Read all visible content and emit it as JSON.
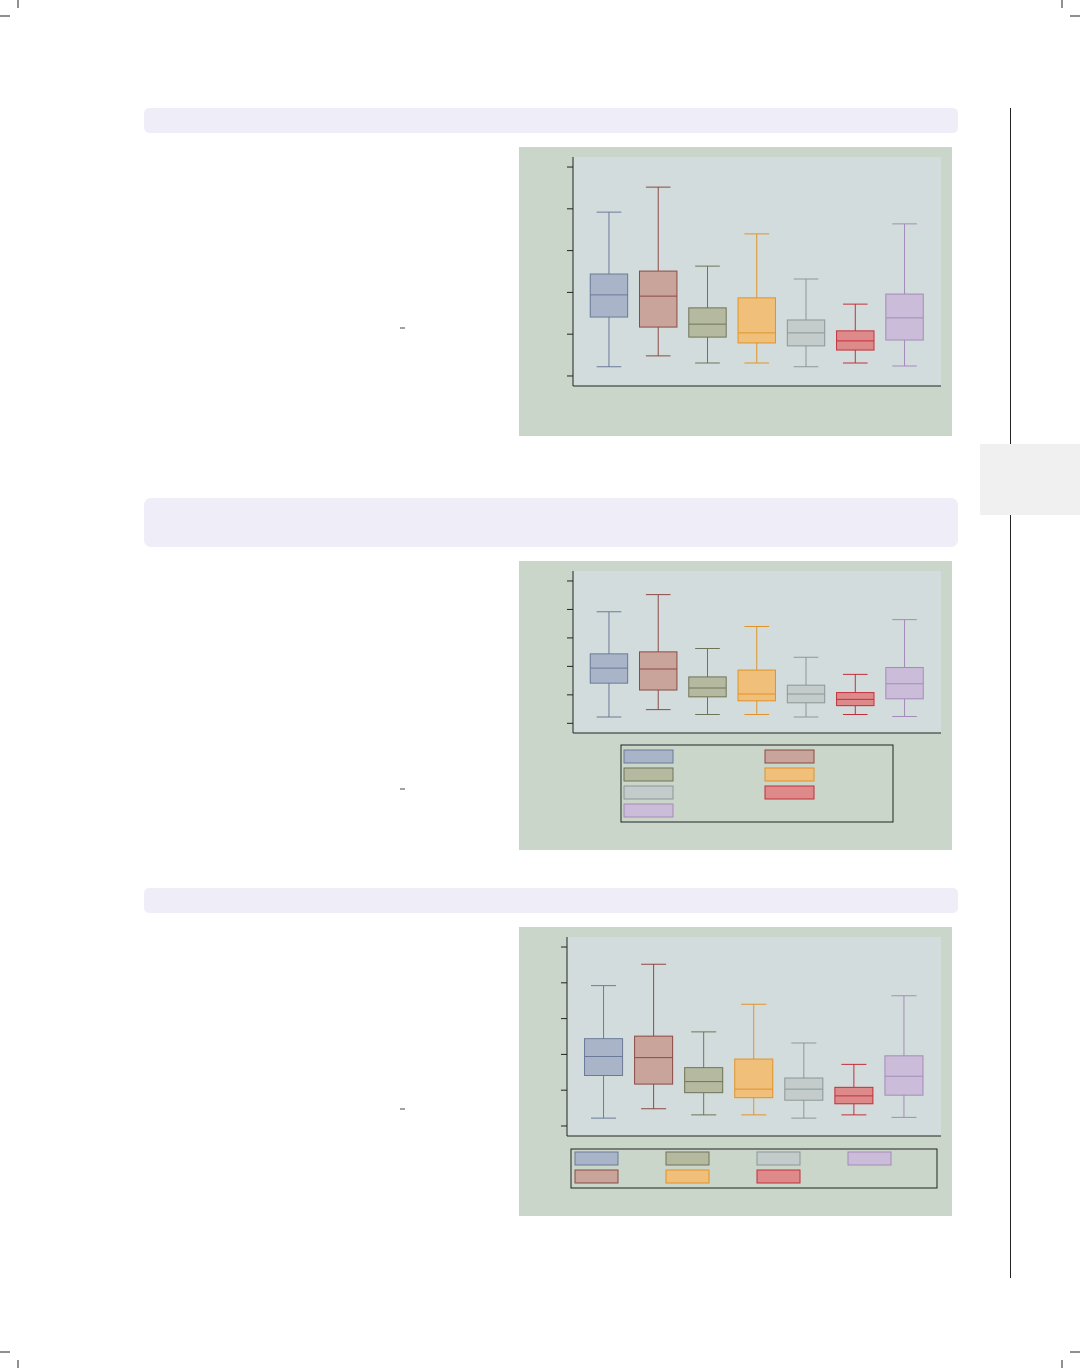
{
  "charts": [
    {
      "chart_data": {
        "type": "box",
        "ylim": [
          -0.24,
          5.24
        ],
        "yticks": [
          0,
          1,
          2,
          3,
          4,
          5
        ],
        "series": [
          {
            "color": "#aab4c8",
            "line_color": "#6b7a99",
            "values": [
              0.22,
              1.41,
              1.94,
              2.44,
              3.92
            ]
          },
          {
            "color": "#c9a49a",
            "line_color": "#8c4a44",
            "values": [
              0.48,
              1.17,
              1.91,
              2.51,
              4.52
            ]
          },
          {
            "color": "#b4b9a0",
            "line_color": "#6e7458",
            "values": [
              0.31,
              0.93,
              1.24,
              1.63,
              2.63
            ]
          },
          {
            "color": "#f0bf7a",
            "line_color": "#e0932a",
            "values": [
              0.31,
              0.79,
              1.03,
              1.87,
              3.4
            ]
          },
          {
            "color": "#c3cbcb",
            "line_color": "#8b9797",
            "values": [
              0.22,
              0.72,
              1.03,
              1.34,
              2.32
            ]
          },
          {
            "color": "#de8a8a",
            "line_color": "#c0303a",
            "values": [
              0.31,
              0.62,
              0.84,
              1.08,
              1.72
            ]
          },
          {
            "color": "#cbbcd9",
            "line_color": "#a38bb8",
            "values": [
              0.24,
              0.86,
              1.39,
              1.96,
              3.64
            ]
          }
        ]
      }
    },
    {
      "chart_data": {
        "type": "box",
        "ylim": [
          -0.34,
          5.35
        ],
        "yticks": [
          0,
          1,
          2,
          3,
          4,
          5
        ],
        "legend": {
          "position": "bottom",
          "columns": 2,
          "fill": "row"
        },
        "series": [
          {
            "color": "#aab4c8",
            "line_color": "#6b7a99",
            "values": [
              0.22,
              1.41,
              1.94,
              2.44,
              3.92
            ]
          },
          {
            "color": "#c9a49a",
            "line_color": "#8c4a44",
            "values": [
              0.48,
              1.17,
              1.91,
              2.51,
              4.52
            ]
          },
          {
            "color": "#b4b9a0",
            "line_color": "#6e7458",
            "values": [
              0.31,
              0.93,
              1.24,
              1.63,
              2.63
            ]
          },
          {
            "color": "#f0bf7a",
            "line_color": "#e0932a",
            "values": [
              0.31,
              0.79,
              1.03,
              1.87,
              3.4
            ]
          },
          {
            "color": "#c3cbcb",
            "line_color": "#8b9797",
            "values": [
              0.22,
              0.72,
              1.03,
              1.34,
              2.32
            ]
          },
          {
            "color": "#de8a8a",
            "line_color": "#c0303a",
            "values": [
              0.31,
              0.62,
              0.84,
              1.08,
              1.72
            ]
          },
          {
            "color": "#cbbcd9",
            "line_color": "#a38bb8",
            "values": [
              0.24,
              0.86,
              1.39,
              1.96,
              3.64
            ]
          }
        ]
      }
    },
    {
      "chart_data": {
        "type": "box",
        "ylim": [
          -0.28,
          5.28
        ],
        "yticks": [
          0,
          1,
          2,
          3,
          4,
          5
        ],
        "legend": {
          "position": "bottom",
          "columns": 4,
          "fill": "column"
        },
        "series": [
          {
            "color": "#aab4c8",
            "line_color": "#6b7a99",
            "values": [
              0.22,
              1.41,
              1.94,
              2.44,
              3.92
            ]
          },
          {
            "color": "#c9a49a",
            "line_color": "#8c4a44",
            "values": [
              0.48,
              1.17,
              1.91,
              2.51,
              4.52
            ]
          },
          {
            "color": "#b4b9a0",
            "line_color": "#6e7458",
            "values": [
              0.31,
              0.93,
              1.24,
              1.63,
              2.63
            ]
          },
          {
            "color": "#f0bf7a",
            "line_color": "#e0932a",
            "values": [
              0.31,
              0.79,
              1.03,
              1.87,
              3.4
            ]
          },
          {
            "color": "#c3cbcb",
            "line_color": "#8b9797",
            "values": [
              0.22,
              0.72,
              1.03,
              1.34,
              2.32
            ]
          },
          {
            "color": "#de8a8a",
            "line_color": "#c0303a",
            "values": [
              0.31,
              0.62,
              0.84,
              1.08,
              1.72
            ]
          },
          {
            "color": "#cbbcd9",
            "line_color": "#a38bb8",
            "values": [
              0.24,
              0.86,
              1.39,
              1.96,
              3.64
            ]
          }
        ]
      }
    }
  ]
}
